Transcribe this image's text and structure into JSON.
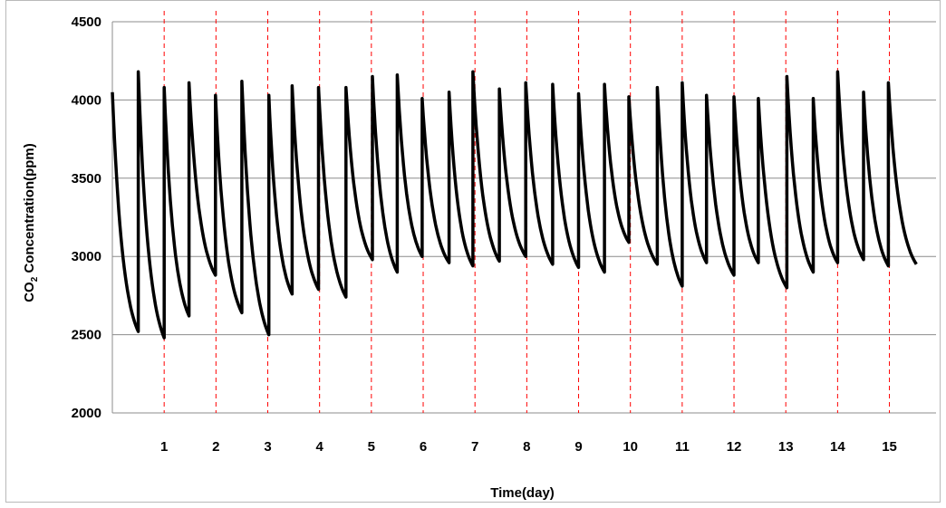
{
  "chart_data": {
    "type": "line",
    "xlabel": "Time(day)",
    "ylabel": {
      "prefix": "CO",
      "subscript": "2",
      "suffix": " Concentration(ppm)"
    },
    "xlim": [
      0,
      15.9
    ],
    "ylim": [
      2000,
      4500
    ],
    "y_ticks": [
      2000,
      2500,
      3000,
      3500,
      4000,
      4500
    ],
    "x_ticks": [
      1,
      2,
      3,
      4,
      5,
      6,
      7,
      8,
      9,
      10,
      11,
      12,
      13,
      14,
      15
    ],
    "grid": "horizontal",
    "reference_lines": {
      "orientation": "vertical",
      "style": "dashed",
      "color": "#ff0000",
      "at": [
        1,
        2,
        3,
        4,
        5,
        6,
        7,
        8,
        9,
        10,
        11,
        12,
        13,
        14,
        15
      ]
    },
    "series": [
      {
        "color": "#000000",
        "cycles": [
          {
            "t0": 0.0,
            "peak": 4050,
            "t1": 0.5,
            "trough": 2520
          },
          {
            "t0": 0.5,
            "peak": 4180,
            "t1": 1.0,
            "trough": 2480
          },
          {
            "t0": 1.0,
            "peak": 4080,
            "t1": 1.48,
            "trough": 2620
          },
          {
            "t0": 1.48,
            "peak": 4110,
            "t1": 1.99,
            "trough": 2880
          },
          {
            "t0": 1.99,
            "peak": 4030,
            "t1": 2.5,
            "trough": 2640
          },
          {
            "t0": 2.5,
            "peak": 4120,
            "t1": 3.02,
            "trough": 2500
          },
          {
            "t0": 3.02,
            "peak": 4030,
            "t1": 3.47,
            "trough": 2760
          },
          {
            "t0": 3.47,
            "peak": 4090,
            "t1": 3.98,
            "trough": 2790
          },
          {
            "t0": 3.98,
            "peak": 4080,
            "t1": 4.51,
            "trough": 2740
          },
          {
            "t0": 4.51,
            "peak": 4080,
            "t1": 5.02,
            "trough": 2980
          },
          {
            "t0": 5.02,
            "peak": 4150,
            "t1": 5.5,
            "trough": 2900
          },
          {
            "t0": 5.5,
            "peak": 4160,
            "t1": 5.98,
            "trough": 3000
          },
          {
            "t0": 5.98,
            "peak": 4010,
            "t1": 6.5,
            "trough": 2960
          },
          {
            "t0": 6.5,
            "peak": 4050,
            "t1": 6.96,
            "trough": 2940
          },
          {
            "t0": 6.96,
            "peak": 4180,
            "t1": 7.47,
            "trough": 2970
          },
          {
            "t0": 7.47,
            "peak": 4070,
            "t1": 7.98,
            "trough": 3000
          },
          {
            "t0": 7.98,
            "peak": 4110,
            "t1": 8.5,
            "trough": 2950
          },
          {
            "t0": 8.5,
            "peak": 4100,
            "t1": 9.0,
            "trough": 2930
          },
          {
            "t0": 9.0,
            "peak": 4040,
            "t1": 9.5,
            "trough": 2900
          },
          {
            "t0": 9.5,
            "peak": 4100,
            "t1": 9.97,
            "trough": 3090
          },
          {
            "t0": 9.97,
            "peak": 4020,
            "t1": 10.52,
            "trough": 2950
          },
          {
            "t0": 10.52,
            "peak": 4080,
            "t1": 11.0,
            "trough": 2810
          },
          {
            "t0": 11.0,
            "peak": 4110,
            "t1": 11.47,
            "trough": 2960
          },
          {
            "t0": 11.47,
            "peak": 4030,
            "t1": 12.0,
            "trough": 2880
          },
          {
            "t0": 12.0,
            "peak": 4020,
            "t1": 12.47,
            "trough": 2960
          },
          {
            "t0": 12.47,
            "peak": 4010,
            "t1": 13.02,
            "trough": 2800
          },
          {
            "t0": 13.02,
            "peak": 4150,
            "t1": 13.53,
            "trough": 2900
          },
          {
            "t0": 13.53,
            "peak": 4010,
            "t1": 14.0,
            "trough": 2960
          },
          {
            "t0": 14.0,
            "peak": 4180,
            "t1": 14.5,
            "trough": 2980
          },
          {
            "t0": 14.5,
            "peak": 4050,
            "t1": 14.98,
            "trough": 2940
          },
          {
            "t0": 14.98,
            "peak": 4110,
            "t1": 15.52,
            "trough": 2950
          }
        ]
      }
    ]
  }
}
